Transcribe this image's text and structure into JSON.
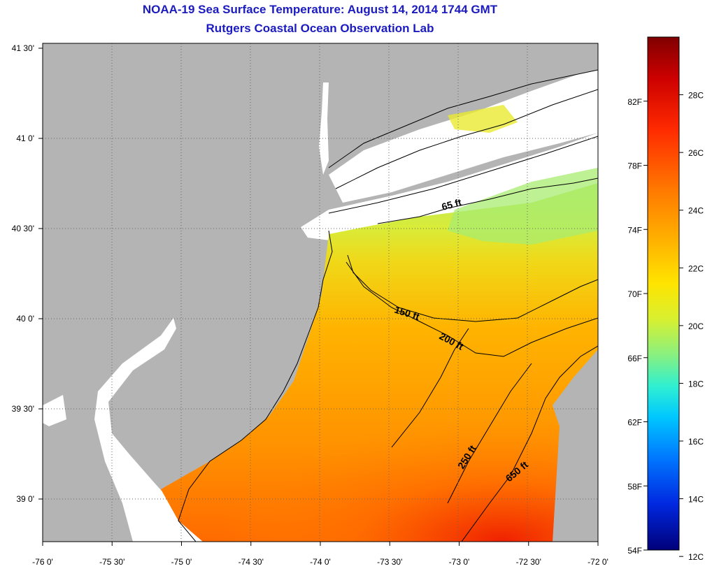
{
  "title": "NOAA-19 Sea Surface Temperature:  August 14, 2014 1744 GMT",
  "subtitle": "Rutgers Coastal Ocean Observation Lab",
  "x_ticks": [
    "-76 0'",
    "-75 30'",
    "-75 0'",
    "-74 30'",
    "-74 0'",
    "-73 30'",
    "-73 0'",
    "-72 30'",
    "-72 0'"
  ],
  "y_ticks": [
    "41 30'",
    "41 0'",
    "40 30'",
    "40 0'",
    "39 30'",
    "39 0'"
  ],
  "contours": [
    "65 ft",
    "150 ft",
    "200 ft",
    "250 ft",
    "650 ft"
  ],
  "colorbar": {
    "fahrenheit_ticks": [
      "82F",
      "78F",
      "74F",
      "70F",
      "66F",
      "62F",
      "58F",
      "54F"
    ],
    "celsius_ticks": [
      "28C",
      "26C",
      "24C",
      "22C",
      "20C",
      "18C",
      "16C",
      "14C",
      "12C"
    ],
    "colors": [
      "#800000",
      "#cc0000",
      "#ff2a00",
      "#ff7a00",
      "#ffb400",
      "#ffe400",
      "#d8f030",
      "#88f080",
      "#30f0d0",
      "#00c8ff",
      "#0078ff",
      "#0028e0",
      "#00007a"
    ]
  },
  "land_color": "#b4b4b4"
}
